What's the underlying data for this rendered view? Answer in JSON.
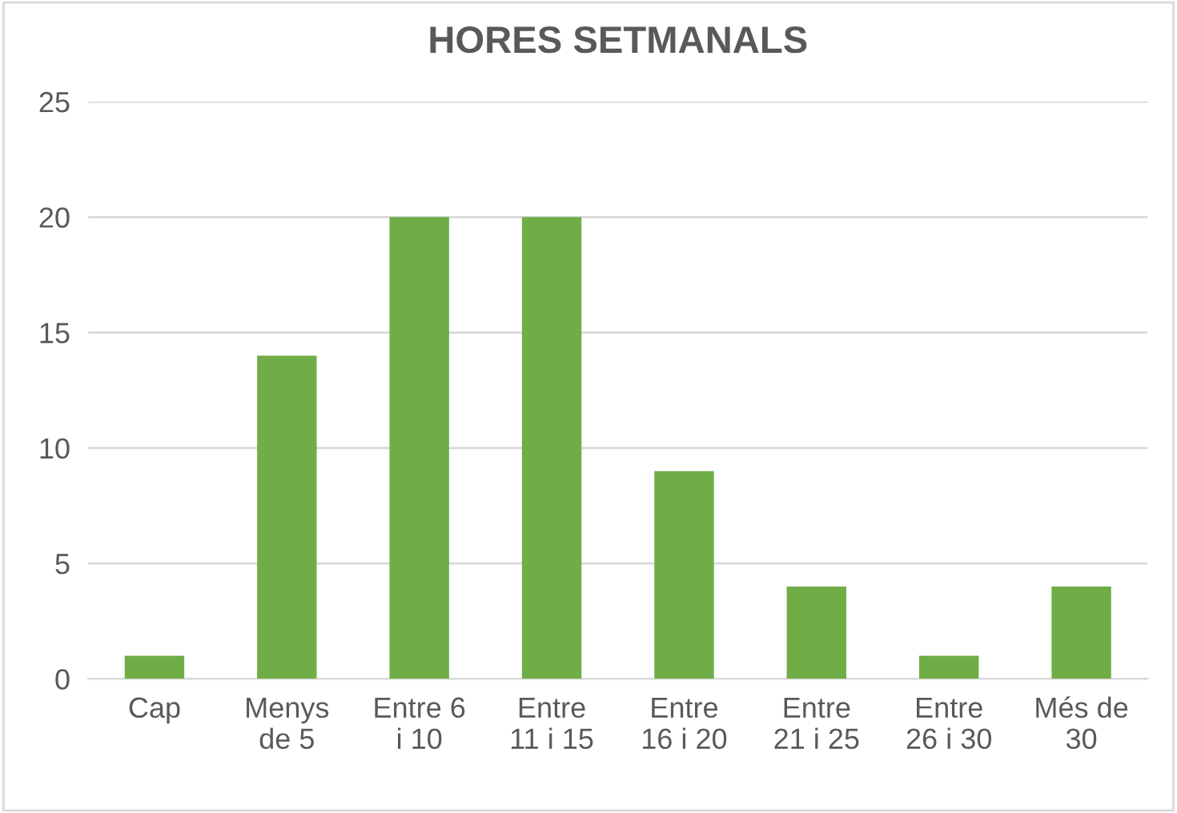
{
  "chart_data": {
    "type": "bar",
    "title": "HORES SETMANALS",
    "categories": [
      "Cap",
      "Menys\nde 5",
      "Entre 6\ni 10",
      "Entre\n11 i 15",
      "Entre\n16 i 20",
      "Entre\n21 i 25",
      "Entre\n26 i 30",
      "Més de\n30"
    ],
    "values": [
      1,
      14,
      20,
      20,
      9,
      4,
      1,
      4
    ],
    "color": "#70ad47",
    "ylim": [
      0,
      25
    ],
    "yticks": [
      0,
      5,
      10,
      15,
      20,
      25
    ],
    "grid": "y"
  }
}
